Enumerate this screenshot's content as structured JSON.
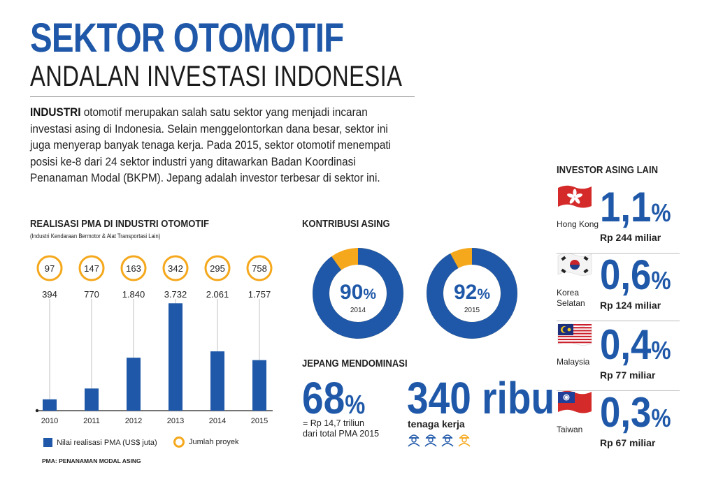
{
  "header": {
    "title": "SEKTOR OTOMOTIF",
    "subtitle": "ANDALAN INVESTASI INDONESIA"
  },
  "intro": {
    "lead": "INDUSTRI",
    "text": " otomotif merupakan salah satu sektor yang menjadi incaran investasi asing di Indonesia. Selain menggelontorkan dana besar, sektor ini juga menyerap banyak tenaga kerja. Pada 2015, sektor otomotif menempati posisi ke-8 dari 24 sektor industri yang ditawarkan Badan Koordinasi Penanaman Modal (BKPM). Jepang adalah investor terbesar di sektor ini."
  },
  "colors": {
    "primary": "#1f58a8",
    "accent": "#f5a81c"
  },
  "pma": {
    "heading": "REALISASI PMA DI INDUSTRI OTOMOTIF",
    "note": "(Industri Kendaraan Bermotor & Alat Transportasi Lain)",
    "legend_bar": "Nilai realisasi PMA (US$ juta)",
    "legend_ring": "Jumlah proyek",
    "footnote": "PMA: PENANAMAN MODAL ASING"
  },
  "chart_data": {
    "type": "bar",
    "categories": [
      "2010",
      "2011",
      "2012",
      "2013",
      "2014",
      "2015"
    ],
    "series": [
      {
        "name": "Nilai realisasi PMA (US$ juta)",
        "values": [
          394,
          770,
          1840,
          3732,
          2061,
          1757
        ],
        "labels": [
          "394",
          "770",
          "1.840",
          "3.732",
          "2.061",
          "1.757"
        ]
      },
      {
        "name": "Jumlah proyek",
        "values": [
          97,
          147,
          163,
          342,
          295,
          758
        ]
      }
    ],
    "ylim": [
      0,
      4200
    ]
  },
  "kontribusi": {
    "heading": "KONTRIBUSI ASING",
    "donuts": [
      {
        "value": 90,
        "label": "90",
        "year": "2014"
      },
      {
        "value": 92,
        "label": "92",
        "year": "2015"
      }
    ]
  },
  "jepang": {
    "heading": "JEPANG MENDOMINASI",
    "pct": "68",
    "pct_sign": "%",
    "pct_line1": "= Rp 14,7 triliun",
    "pct_line2": "dari total PMA 2015",
    "workers": "340 ribu",
    "workers_caption": "tenaga kerja",
    "worker_icons": [
      "worker-icon",
      "worker-icon",
      "worker-icon",
      "worker-icon"
    ],
    "worker_share": 0.875
  },
  "investor": {
    "heading": "INVESTOR ASING LAIN",
    "rows": [
      {
        "country": "Hong Kong",
        "pct": "1,1",
        "amount": "Rp 244 miliar",
        "flag": "hong-kong-flag-icon"
      },
      {
        "country": "Korea\nSelatan",
        "pct": "0,6",
        "amount": "Rp 124 miliar",
        "flag": "south-korea-flag-icon"
      },
      {
        "country": "Malaysia",
        "pct": "0,4",
        "amount": "Rp 77 miliar",
        "flag": "malaysia-flag-icon"
      },
      {
        "country": "Taiwan",
        "pct": "0,3",
        "amount": "Rp 67 miliar",
        "flag": "taiwan-flag-icon"
      }
    ],
    "pct_sign": "%"
  }
}
